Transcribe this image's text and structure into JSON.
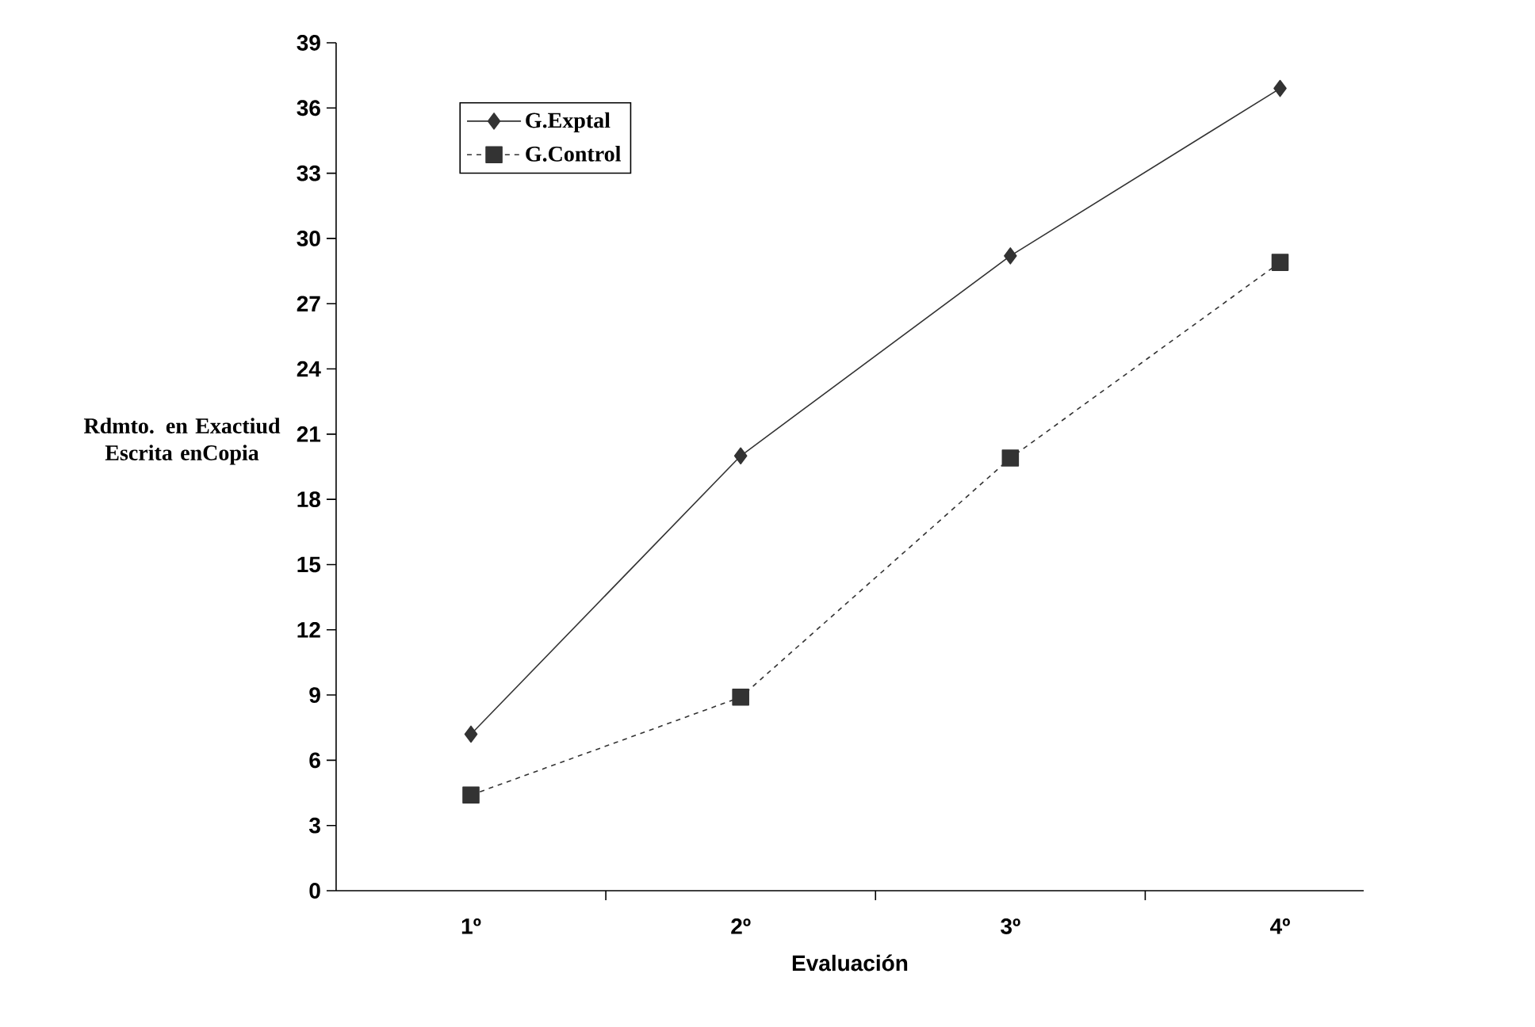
{
  "chart_data": {
    "type": "line",
    "xlabel": "Evaluación",
    "ylabel": "Rdmto. en Exactiud Escrita enCopia",
    "categories": [
      "1º",
      "2º",
      "3º",
      "4º"
    ],
    "series": [
      {
        "name": "G.Exptal",
        "color": "#333333",
        "marker": "diamond",
        "line_style": "solid",
        "values": [
          7.2,
          20.0,
          29.2,
          36.9
        ]
      },
      {
        "name": "G.Control",
        "color": "#333333",
        "marker": "square",
        "line_style": "dashed",
        "values": [
          4.4,
          8.9,
          19.9,
          28.9
        ]
      }
    ],
    "ylim": [
      0,
      39
    ],
    "yticks": [
      0,
      3,
      6,
      9,
      12,
      15,
      18,
      21,
      24,
      27,
      30,
      33,
      36,
      39
    ],
    "grid": false,
    "legend": "top left"
  }
}
